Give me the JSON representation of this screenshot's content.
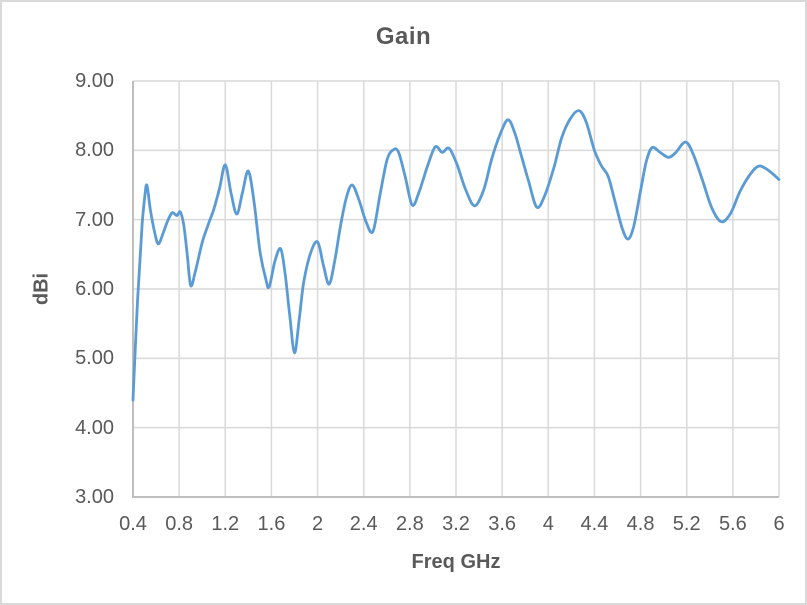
{
  "chart_data": {
    "type": "line",
    "title": "Gain",
    "xlabel": "Freq GHz",
    "ylabel": "dBi",
    "xlim": [
      0.4,
      6.0
    ],
    "ylim": [
      3.0,
      9.0
    ],
    "grid": true,
    "legend": false,
    "smooth": true,
    "x_ticks": [
      0.4,
      0.8,
      1.2,
      1.6,
      2.0,
      2.4,
      2.8,
      3.2,
      3.6,
      4.0,
      4.4,
      4.8,
      5.2,
      5.6,
      6.0
    ],
    "x_tick_labels": [
      "0.4",
      "0.8",
      "1.2",
      "1.6",
      "2",
      "2.4",
      "2.8",
      "3.2",
      "3.6",
      "4",
      "4.4",
      "4.8",
      "5.2",
      "5.6",
      "6"
    ],
    "y_ticks": [
      3,
      4,
      5,
      6,
      7,
      8,
      9
    ],
    "y_tick_labels": [
      "3.00",
      "4.00",
      "5.00",
      "6.00",
      "7.00",
      "8.00",
      "9.00"
    ],
    "colors": {
      "line": "#5B9BD5",
      "grid": "#D9D9D9",
      "axis": "#BFBFBF",
      "text": "#595959",
      "border": "#D9D9D9",
      "background": "#FFFFFF"
    },
    "series": [
      {
        "name": "Gain",
        "points": [
          [
            0.4,
            4.4
          ],
          [
            0.42,
            5.15
          ],
          [
            0.44,
            5.85
          ],
          [
            0.46,
            6.4
          ],
          [
            0.48,
            6.95
          ],
          [
            0.5,
            7.3
          ],
          [
            0.52,
            7.5
          ],
          [
            0.55,
            7.15
          ],
          [
            0.59,
            6.8
          ],
          [
            0.62,
            6.65
          ],
          [
            0.66,
            6.8
          ],
          [
            0.7,
            6.98
          ],
          [
            0.74,
            7.1
          ],
          [
            0.78,
            7.06
          ],
          [
            0.81,
            7.11
          ],
          [
            0.84,
            6.92
          ],
          [
            0.87,
            6.5
          ],
          [
            0.9,
            6.05
          ],
          [
            0.94,
            6.25
          ],
          [
            1.0,
            6.67
          ],
          [
            1.05,
            6.92
          ],
          [
            1.1,
            7.15
          ],
          [
            1.15,
            7.45
          ],
          [
            1.2,
            7.79
          ],
          [
            1.25,
            7.38
          ],
          [
            1.3,
            7.08
          ],
          [
            1.35,
            7.4
          ],
          [
            1.4,
            7.7
          ],
          [
            1.45,
            7.25
          ],
          [
            1.5,
            6.55
          ],
          [
            1.55,
            6.15
          ],
          [
            1.58,
            6.03
          ],
          [
            1.63,
            6.4
          ],
          [
            1.68,
            6.58
          ],
          [
            1.72,
            6.2
          ],
          [
            1.76,
            5.6
          ],
          [
            1.8,
            5.08
          ],
          [
            1.84,
            5.55
          ],
          [
            1.88,
            6.1
          ],
          [
            1.94,
            6.52
          ],
          [
            2.0,
            6.68
          ],
          [
            2.05,
            6.35
          ],
          [
            2.1,
            6.07
          ],
          [
            2.15,
            6.42
          ],
          [
            2.2,
            6.92
          ],
          [
            2.25,
            7.32
          ],
          [
            2.3,
            7.5
          ],
          [
            2.36,
            7.28
          ],
          [
            2.42,
            6.97
          ],
          [
            2.48,
            6.83
          ],
          [
            2.54,
            7.35
          ],
          [
            2.6,
            7.85
          ],
          [
            2.65,
            8.0
          ],
          [
            2.7,
            7.98
          ],
          [
            2.76,
            7.62
          ],
          [
            2.82,
            7.21
          ],
          [
            2.88,
            7.4
          ],
          [
            2.95,
            7.76
          ],
          [
            3.02,
            8.05
          ],
          [
            3.08,
            7.97
          ],
          [
            3.14,
            8.03
          ],
          [
            3.21,
            7.79
          ],
          [
            3.28,
            7.45
          ],
          [
            3.36,
            7.2
          ],
          [
            3.44,
            7.43
          ],
          [
            3.51,
            7.88
          ],
          [
            3.58,
            8.22
          ],
          [
            3.65,
            8.44
          ],
          [
            3.71,
            8.25
          ],
          [
            3.77,
            7.9
          ],
          [
            3.83,
            7.55
          ],
          [
            3.9,
            7.18
          ],
          [
            3.97,
            7.35
          ],
          [
            4.05,
            7.76
          ],
          [
            4.12,
            8.2
          ],
          [
            4.2,
            8.48
          ],
          [
            4.27,
            8.57
          ],
          [
            4.33,
            8.4
          ],
          [
            4.4,
            8.0
          ],
          [
            4.46,
            7.78
          ],
          [
            4.52,
            7.62
          ],
          [
            4.58,
            7.25
          ],
          [
            4.64,
            6.88
          ],
          [
            4.69,
            6.72
          ],
          [
            4.74,
            6.9
          ],
          [
            4.8,
            7.42
          ],
          [
            4.85,
            7.84
          ],
          [
            4.9,
            8.04
          ],
          [
            4.97,
            7.97
          ],
          [
            5.04,
            7.9
          ],
          [
            5.1,
            7.96
          ],
          [
            5.19,
            8.12
          ],
          [
            5.26,
            7.93
          ],
          [
            5.34,
            7.55
          ],
          [
            5.42,
            7.16
          ],
          [
            5.5,
            6.97
          ],
          [
            5.58,
            7.09
          ],
          [
            5.66,
            7.4
          ],
          [
            5.74,
            7.63
          ],
          [
            5.82,
            7.77
          ],
          [
            5.9,
            7.72
          ],
          [
            6.0,
            7.58
          ]
        ]
      }
    ]
  }
}
